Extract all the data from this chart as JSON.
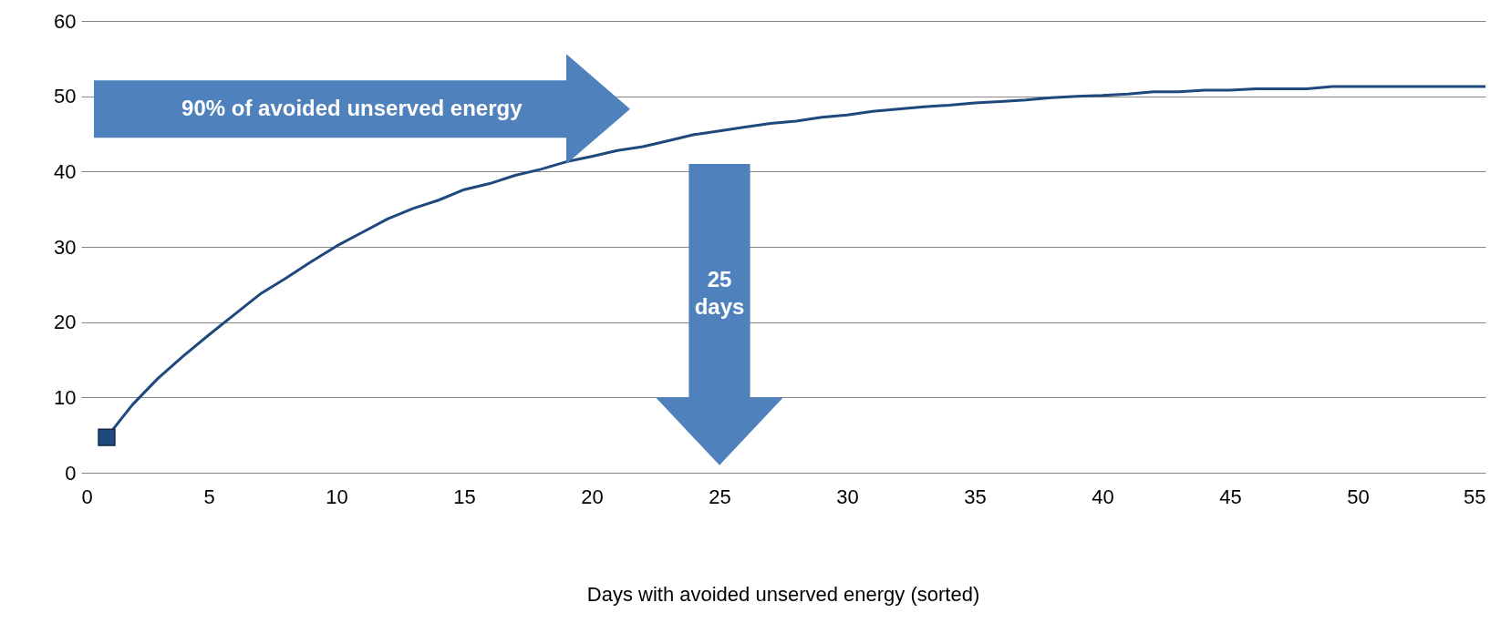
{
  "chart_data": {
    "type": "line",
    "xlabel": "Days with avoided unserved energy (sorted)",
    "x": [
      1,
      2,
      3,
      4,
      5,
      6,
      7,
      8,
      9,
      10,
      11,
      12,
      13,
      14,
      15,
      16,
      17,
      18,
      19,
      20,
      21,
      22,
      23,
      24,
      25,
      26,
      27,
      28,
      29,
      30,
      31,
      32,
      33,
      34,
      35,
      36,
      37,
      38,
      39,
      40,
      41,
      42,
      43,
      44,
      45,
      46,
      47,
      48,
      49,
      50,
      51,
      52,
      53,
      54,
      55
    ],
    "series": [
      {
        "color": "#1f497d",
        "values": [
          4.7,
          9,
          12.5,
          15.5,
          18.3,
          21,
          23.7,
          25.8,
          28,
          30.1,
          31.9,
          33.7,
          35.1,
          36.2,
          37.6,
          38.4,
          39.5,
          40.3,
          41.3,
          42,
          42.8,
          43.3,
          44.1,
          44.9,
          45.4,
          45.9,
          46.4,
          46.7,
          47.2,
          47.5,
          48,
          48.3,
          48.6,
          48.8,
          49.1,
          49.3,
          49.5,
          49.8,
          50,
          50.1,
          50.3,
          50.6,
          50.6,
          50.8,
          50.8,
          51,
          51,
          51,
          51.3,
          51.3,
          51.3,
          51.3,
          51.3,
          51.3,
          51.3
        ]
      },
      {
        "type": "scatter",
        "marker": "square",
        "color": "#1f497d",
        "x": [
          1
        ],
        "values": [
          4.7
        ]
      }
    ],
    "xlim": [
      0,
      55
    ],
    "xticks": [
      0,
      5,
      10,
      15,
      20,
      25,
      30,
      35,
      40,
      45,
      50,
      55
    ],
    "ylim": [
      0,
      60
    ],
    "yticks": [
      0,
      10,
      20,
      30,
      40,
      50,
      60
    ],
    "grid": "y",
    "marker": "none",
    "line_style": "solid",
    "annotations": [
      "90% of avoided unserved energy",
      "25 days"
    ]
  }
}
